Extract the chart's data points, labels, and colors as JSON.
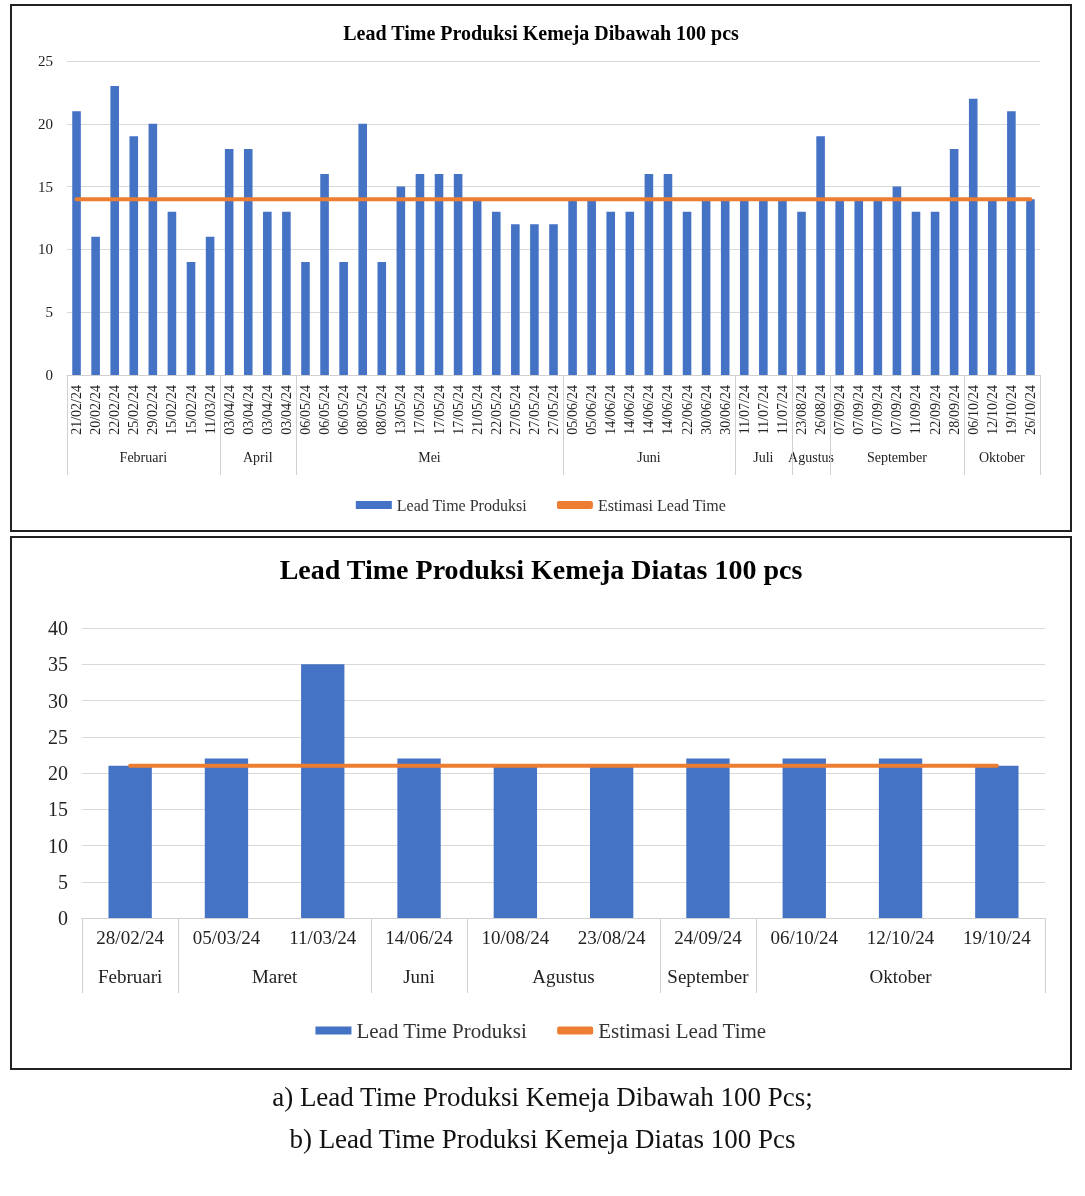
{
  "chart_data": [
    {
      "type": "bar",
      "title": "Lead Time Produksi Kemeja Dibawah 100 pcs",
      "categories": [
        "21/02/24",
        "20/02/24",
        "22/02/24",
        "25/02/24",
        "29/02/24",
        "15/02/24",
        "15/02/24",
        "11/03/24",
        "03/04/24",
        "03/04/24",
        "03/04/24",
        "03/04/24",
        "06/05/24",
        "06/05/24",
        "06/05/24",
        "08/05/24",
        "08/05/24",
        "13/05/24",
        "17/05/24",
        "17/05/24",
        "17/05/24",
        "21/05/24",
        "22/05/24",
        "27/05/24",
        "27/05/24",
        "27/05/24",
        "05/06/24",
        "05/06/24",
        "14/06/24",
        "14/06/24",
        "14/06/24",
        "14/06/24",
        "22/06/24",
        "30/06/24",
        "30/06/24",
        "11/07/24",
        "11/07/24",
        "11/07/24",
        "23/08/24",
        "26/08/24",
        "07/09/24",
        "07/09/24",
        "07/09/24",
        "07/09/24",
        "11/09/24",
        "22/09/24",
        "28/09/24",
        "06/10/24",
        "12/10/24",
        "19/10/24",
        "26/10/24"
      ],
      "series": [
        {
          "name": "Lead Time Produksi",
          "color": "#4472c4",
          "values": [
            21,
            11,
            23,
            19,
            20,
            13,
            9,
            11,
            18,
            18,
            13,
            13,
            9,
            16,
            9,
            20,
            9,
            15,
            16,
            16,
            16,
            14,
            13,
            12,
            12,
            12,
            14,
            14,
            13,
            13,
            16,
            16,
            13,
            14,
            14,
            14,
            14,
            14,
            13,
            19,
            14,
            14,
            14,
            15,
            13,
            13,
            18,
            22,
            14,
            21,
            14
          ]
        },
        {
          "name": "Estimasi Lead Time",
          "type": "line",
          "color": "#ed7d31",
          "values": [
            14,
            14,
            14,
            14,
            14,
            14,
            14,
            14,
            14,
            14,
            14,
            14,
            14,
            14,
            14,
            14,
            14,
            14,
            14,
            14,
            14,
            14,
            14,
            14,
            14,
            14,
            14,
            14,
            14,
            14,
            14,
            14,
            14,
            14,
            14,
            14,
            14,
            14,
            14,
            14,
            14,
            14,
            14,
            14,
            14,
            14,
            14,
            14,
            14,
            14,
            14
          ]
        }
      ],
      "ylim": [
        0,
        25
      ],
      "yticks": [
        0,
        5,
        10,
        15,
        20,
        25
      ],
      "grid": "y",
      "legend": "bottom",
      "annotations": [
        "Februari",
        "April",
        "Mei",
        "Juni",
        "Juli",
        "Agustus",
        "September",
        "Oktober"
      ]
    },
    {
      "type": "bar",
      "title": "Lead Time Produksi Kemeja Diatas 100 pcs",
      "categories": [
        "28/02/24",
        "05/03/24",
        "11/03/24",
        "14/06/24",
        "10/08/24",
        "23/08/24",
        "24/09/24",
        "06/10/24",
        "12/10/24",
        "19/10/24"
      ],
      "series": [
        {
          "name": "Lead Time Produksi",
          "color": "#4472c4",
          "values": [
            21,
            22,
            35,
            22,
            21,
            21,
            22,
            22,
            22,
            21
          ]
        },
        {
          "name": "Estimasi Lead Time",
          "type": "line",
          "color": "#ed7d31",
          "values": [
            21,
            21,
            21,
            21,
            21,
            21,
            21,
            21,
            21,
            21
          ]
        }
      ],
      "ylim": [
        0,
        40
      ],
      "yticks": [
        0,
        5,
        10,
        15,
        20,
        25,
        30,
        35,
        40
      ],
      "grid": "y",
      "legend": "bottom",
      "annotations": [
        "Februari",
        "Maret",
        "Juni",
        "Agustus",
        "September",
        "Oktober",
        "a) Lead Time Produksi Kemeja Dibawah 100 Pcs;",
        "b) Lead Time Produksi Kemeja Diatas 100 Pcs"
      ]
    }
  ]
}
